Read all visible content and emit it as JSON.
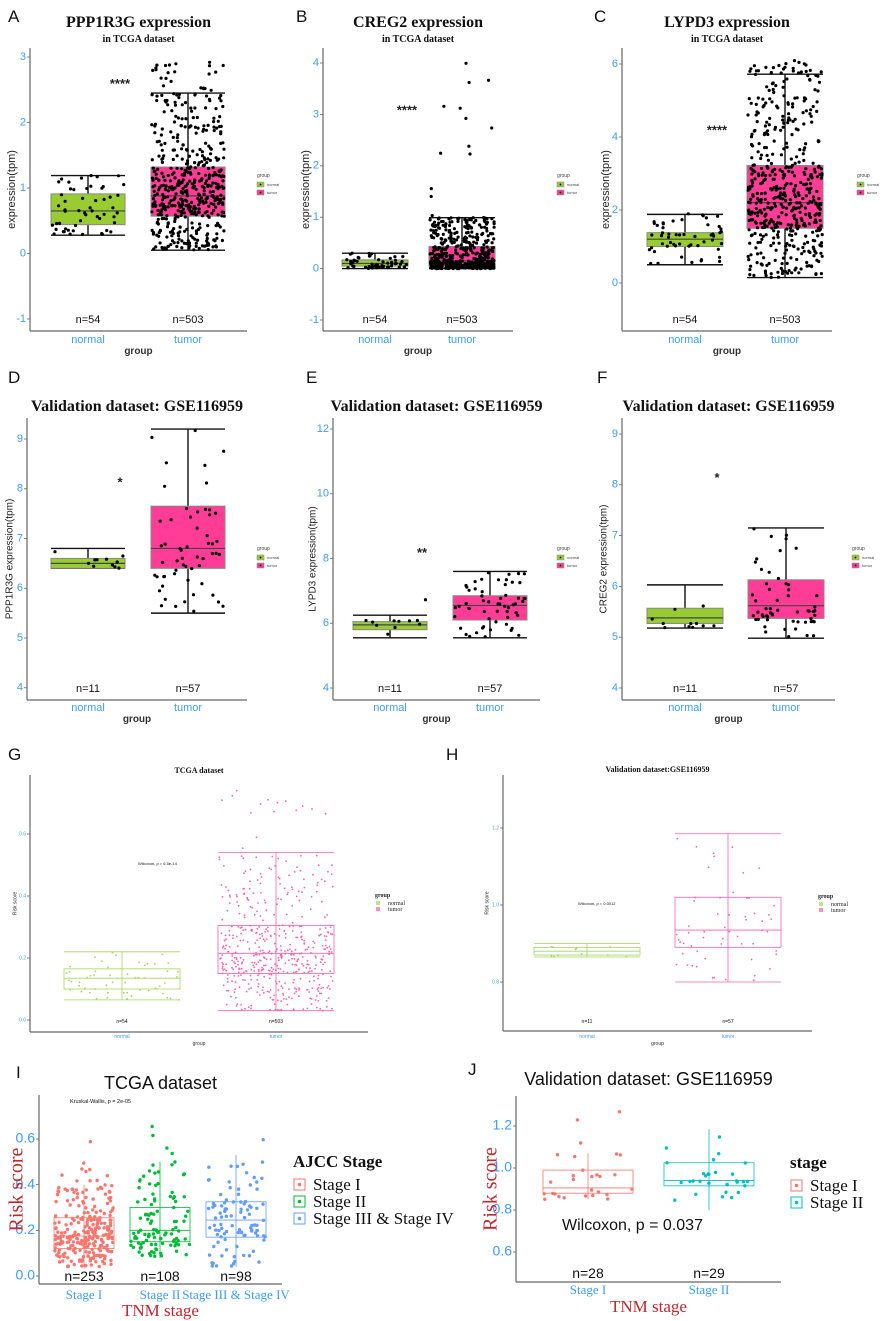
{
  "chart_data": [
    {
      "panel": "A",
      "type": "box",
      "title": "PPP1R3G expression",
      "subtitle": "in TCGA dataset",
      "ylabel": "expression(tpm)",
      "xlabel": "group",
      "yticks": [
        "-1",
        "0",
        "1",
        "2",
        "3"
      ],
      "ytick_values": [
        -1,
        0,
        1,
        2,
        3
      ],
      "ylim": [
        -1.1,
        3.1
      ],
      "categories": [
        "normal",
        "tumor"
      ],
      "n_labels": [
        "n=54",
        "n=503"
      ],
      "n": [
        54,
        503
      ],
      "boxes": [
        {
          "min": 0.28,
          "q1": 0.44,
          "median": 0.65,
          "q3": 0.91,
          "max": 1.19,
          "outlier_max": 1.19
        },
        {
          "min": 0.05,
          "q1": 0.57,
          "median": 0.88,
          "q3": 1.32,
          "max": 2.45,
          "outlier_max": 2.95
        }
      ],
      "significance": "****",
      "significance_y": 2.6,
      "legend": {
        "title": "group",
        "entries": [
          "normal",
          "tumor"
        ]
      },
      "colors": [
        "#99cc33",
        "#ff3d96"
      ]
    },
    {
      "panel": "B",
      "type": "box",
      "title": "CREG2 expression",
      "subtitle": "in TCGA dataset",
      "ylabel": "expression(tpm)",
      "xlabel": "group",
      "yticks": [
        "-1",
        "0",
        "1",
        "2",
        "3",
        "4"
      ],
      "ytick_values": [
        -1,
        0,
        1,
        2,
        3,
        4
      ],
      "ylim": [
        -1.1,
        4.2
      ],
      "categories": [
        "normal",
        "tumor"
      ],
      "n_labels": [
        "n=54",
        "n=503"
      ],
      "n": [
        54,
        503
      ],
      "boxes": [
        {
          "min": 0.0,
          "q1": 0.05,
          "median": 0.1,
          "q3": 0.17,
          "max": 0.3,
          "outlier_max": 0.3
        },
        {
          "min": 0.0,
          "q1": 0.05,
          "median": 0.15,
          "q3": 0.43,
          "max": 0.99,
          "outlier_max": 4.05
        }
      ],
      "significance": "****",
      "significance_y": 3.1,
      "legend": {
        "title": "group",
        "entries": [
          "normal",
          "tumor"
        ]
      },
      "colors": [
        "#99cc33",
        "#ff3d96"
      ]
    },
    {
      "panel": "C",
      "type": "box",
      "title": "LYPD3 expression",
      "subtitle": "in TCGA dataset",
      "ylabel": "expression(tpm)",
      "xlabel": "group",
      "yticks": [
        "0",
        "2",
        "4",
        "6"
      ],
      "ytick_values": [
        0,
        2,
        4,
        6
      ],
      "ylim": [
        -1.5,
        6.3
      ],
      "categories": [
        "normal",
        "tumor"
      ],
      "n_labels": [
        "n=54",
        "n=503"
      ],
      "n": [
        54,
        503
      ],
      "boxes": [
        {
          "min": 0.5,
          "q1": 1.0,
          "median": 1.2,
          "q3": 1.38,
          "max": 1.88,
          "outlier_max": 1.95
        },
        {
          "min": 0.15,
          "q1": 1.5,
          "median": 2.2,
          "q3": 3.22,
          "max": 5.72,
          "outlier_max": 6.1
        }
      ],
      "significance": "****",
      "significance_y": 4.2,
      "legend": {
        "title": "group",
        "entries": [
          "normal",
          "tumor"
        ]
      },
      "colors": [
        "#99cc33",
        "#ff3d96"
      ]
    },
    {
      "panel": "D",
      "type": "box",
      "title": "Validation dataset: GSE116959",
      "subtitle": "",
      "ylabel": "PPP1R3G expression(tpm)",
      "xlabel": "group",
      "yticks": [
        "4",
        "5",
        "6",
        "7",
        "8",
        "9"
      ],
      "ytick_values": [
        4,
        5,
        6,
        7,
        8,
        9
      ],
      "ylim": [
        3.8,
        9.3
      ],
      "categories": [
        "normal",
        "tumor"
      ],
      "n_labels": [
        "n=11",
        "n=57"
      ],
      "n": [
        11,
        57
      ],
      "boxes": [
        {
          "min": 6.4,
          "q1": 6.4,
          "median": 6.5,
          "q3": 6.6,
          "max": 6.8,
          "outlier_max": 6.8,
          "outlier_min": 6.05
        },
        {
          "min": 5.5,
          "q1": 6.4,
          "median": 6.8,
          "q3": 7.65,
          "max": 9.2,
          "outlier_max": 9.2
        }
      ],
      "significance": "*",
      "significance_y": 8.15,
      "legend": {
        "title": "group",
        "entries": [
          "normal",
          "tumor"
        ]
      },
      "colors": [
        "#99cc33",
        "#ff3d96"
      ]
    },
    {
      "panel": "E",
      "type": "box",
      "title": "Validation dataset: GSE116959",
      "subtitle": "",
      "ylabel": "LYPD3 expression(tpm)",
      "xlabel": "group",
      "yticks": [
        "4",
        "6",
        "8",
        "10",
        "12"
      ],
      "ytick_values": [
        4,
        6,
        8,
        10,
        12
      ],
      "ylim": [
        3.6,
        12.3
      ],
      "categories": [
        "normal",
        "tumor"
      ],
      "n_labels": [
        "n=11",
        "n=57"
      ],
      "n": [
        11,
        57
      ],
      "boxes": [
        {
          "min": 5.55,
          "q1": 5.8,
          "median": 5.95,
          "q3": 6.05,
          "max": 6.25,
          "outlier_max": 6.85
        },
        {
          "min": 5.55,
          "q1": 6.1,
          "median": 6.55,
          "q3": 6.85,
          "max": 7.6,
          "outlier_max": 12.0
        }
      ],
      "significance": "**",
      "significance_y": 8.2,
      "legend": {
        "title": "group",
        "entries": [
          "normal",
          "tumor"
        ]
      },
      "colors": [
        "#99cc33",
        "#ff3d96"
      ]
    },
    {
      "panel": "F",
      "type": "box",
      "title": "Validation dataset: GSE116959",
      "subtitle": "",
      "ylabel": "CREG2 expression(tpm)",
      "xlabel": "group",
      "yticks": [
        "4",
        "5",
        "6",
        "7",
        "8",
        "9"
      ],
      "ytick_values": [
        4,
        5,
        6,
        7,
        8,
        9
      ],
      "ylim": [
        3.8,
        9.3
      ],
      "categories": [
        "normal",
        "tumor"
      ],
      "n_labels": [
        "n=11",
        "n=57"
      ],
      "n": [
        11,
        57
      ],
      "boxes": [
        {
          "min": 5.18,
          "q1": 5.27,
          "median": 5.38,
          "q3": 5.57,
          "max": 6.03,
          "outlier_max": 6.03
        },
        {
          "min": 4.98,
          "q1": 5.37,
          "median": 5.62,
          "q3": 6.13,
          "max": 7.15,
          "outlier_max": 9.1
        }
      ],
      "significance": "*",
      "significance_y": 8.15,
      "legend": {
        "title": "group",
        "entries": [
          "normal",
          "tumor"
        ]
      },
      "colors": [
        "#99cc33",
        "#ff3d96"
      ]
    },
    {
      "panel": "G",
      "type": "box",
      "title": "TCGA dataset",
      "subtitle": "",
      "ylabel": "Risk score",
      "xlabel": "group",
      "yticks": [
        "0.0",
        "0.2",
        "0.4",
        "0.6"
      ],
      "ytick_values": [
        0,
        0.2,
        0.4,
        0.6
      ],
      "ylim": [
        -0.03,
        0.78
      ],
      "categories": [
        "normal",
        "tumor"
      ],
      "n_labels": [
        "n=54",
        "n=503"
      ],
      "n": [
        54,
        503
      ],
      "boxes": [
        {
          "min": 0.065,
          "q1": 0.1,
          "median": 0.135,
          "q3": 0.165,
          "max": 0.22,
          "outlier_max": 0.22
        },
        {
          "min": 0.03,
          "q1": 0.15,
          "median": 0.215,
          "q3": 0.305,
          "max": 0.54,
          "outlier_max": 0.75
        }
      ],
      "test_label": "Wilcoxon, p = 6.5e-14",
      "legend": {
        "title": "group",
        "entries": [
          "normal",
          "tumor"
        ]
      },
      "colors": [
        "#a3d55d",
        "#ff5fae"
      ]
    },
    {
      "panel": "H",
      "type": "box",
      "title": "Validation dataset:GSE116959",
      "subtitle": "",
      "ylabel": "Risk score",
      "xlabel": "group",
      "yticks": [
        "0.8",
        "1.0",
        "1.2"
      ],
      "ytick_values": [
        0.8,
        1.0,
        1.2
      ],
      "ylim": [
        0.65,
        1.35
      ],
      "categories": [
        "normal",
        "tumor"
      ],
      "n_labels": [
        "n=11",
        "n=57"
      ],
      "n": [
        11,
        57
      ],
      "boxes": [
        {
          "min": 0.865,
          "q1": 0.87,
          "median": 0.88,
          "q3": 0.89,
          "max": 0.9,
          "outlier_max": 0.91
        },
        {
          "min": 0.8,
          "q1": 0.89,
          "median": 0.935,
          "q3": 1.02,
          "max": 1.185,
          "outlier_max": 1.3
        }
      ],
      "test_label": "Wilcoxon, p = 0.0012",
      "legend": {
        "title": "group",
        "entries": [
          "normal",
          "tumor"
        ]
      },
      "colors": [
        "#a3d55d",
        "#ff5fae"
      ]
    },
    {
      "panel": "I",
      "type": "box",
      "title": "TCGA dataset",
      "subtitle": "",
      "ylabel": "Risk score",
      "xlabel": "TNM stage",
      "yticks": [
        "0.0",
        "0.2",
        "0.4",
        "0.6"
      ],
      "ytick_values": [
        0,
        0.2,
        0.4,
        0.6
      ],
      "ylim": [
        -0.02,
        0.75
      ],
      "categories": [
        "Stage I",
        "Stage II",
        "Stage III & Stage IV"
      ],
      "n_labels": [
        "n=253",
        "n=108",
        "n=98"
      ],
      "n": [
        253,
        108,
        98
      ],
      "boxes": [
        {
          "min": 0.04,
          "q1": 0.12,
          "median": 0.175,
          "q3": 0.255,
          "max": 0.4,
          "outlier_max": 0.59
        },
        {
          "min": 0.08,
          "q1": 0.15,
          "median": 0.2,
          "q3": 0.3,
          "max": 0.5,
          "outlier_max": 0.71
        },
        {
          "min": 0.04,
          "q1": 0.17,
          "median": 0.245,
          "q3": 0.325,
          "max": 0.53,
          "outlier_max": 0.605
        }
      ],
      "test_label": "Kruskal-Wallis, p = 2e-05",
      "legend": {
        "title": "AJCC Stage",
        "entries": [
          "Stage I",
          "Stage II",
          "Stage III & Stage IV"
        ]
      },
      "colors": [
        "#f8766d",
        "#00ba38",
        "#619cff"
      ]
    },
    {
      "panel": "J",
      "type": "box",
      "title": "Validation dataset: GSE116959",
      "subtitle": "",
      "ylabel": "Risk score",
      "xlabel": "TNM stage",
      "yticks": [
        "0.6",
        "0.8",
        "1.0",
        "1.2"
      ],
      "ytick_values": [
        0.6,
        0.8,
        1.0,
        1.2
      ],
      "ylim": [
        0.5,
        1.33
      ],
      "categories": [
        "Stage I",
        "Stage II"
      ],
      "n_labels": [
        "n=28",
        "n=29"
      ],
      "n": [
        28,
        29
      ],
      "boxes": [
        {
          "min": 0.85,
          "q1": 0.88,
          "median": 0.905,
          "q3": 0.99,
          "max": 1.07,
          "outlier_max": 1.3
        },
        {
          "min": 0.8,
          "q1": 0.915,
          "median": 0.94,
          "q3": 1.025,
          "max": 1.185,
          "outlier_max": 1.185
        }
      ],
      "test_label": "Wilcoxon, p = 0.037",
      "legend": {
        "title": "stage",
        "entries": [
          "Stage I",
          "Stage II"
        ]
      },
      "colors": [
        "#f8766d",
        "#00bfc4"
      ]
    }
  ],
  "theme": {
    "tick_color": "#3d9df5",
    "axis_title_red": "#c1272d"
  }
}
